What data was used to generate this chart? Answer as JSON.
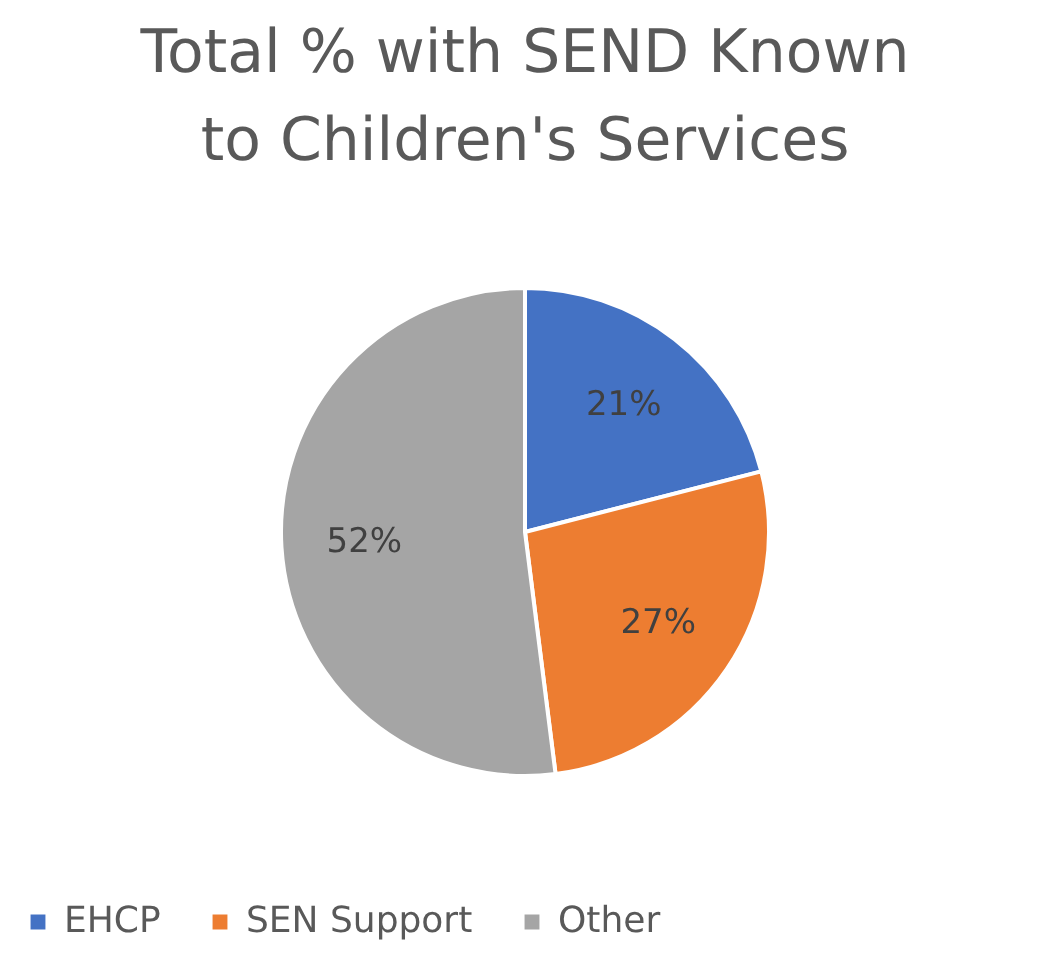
{
  "chart_data": {
    "type": "pie",
    "title": "Total % with SEND  Known to Children's Services",
    "categories": [
      "EHCP",
      "SEN Support",
      "Other"
    ],
    "values": [
      21,
      27,
      52
    ],
    "colors": [
      "#4472c4",
      "#ed7d31",
      "#a5a5a5"
    ],
    "value_labels": [
      "21%",
      "27%",
      "52%"
    ],
    "legend": "bottom"
  }
}
